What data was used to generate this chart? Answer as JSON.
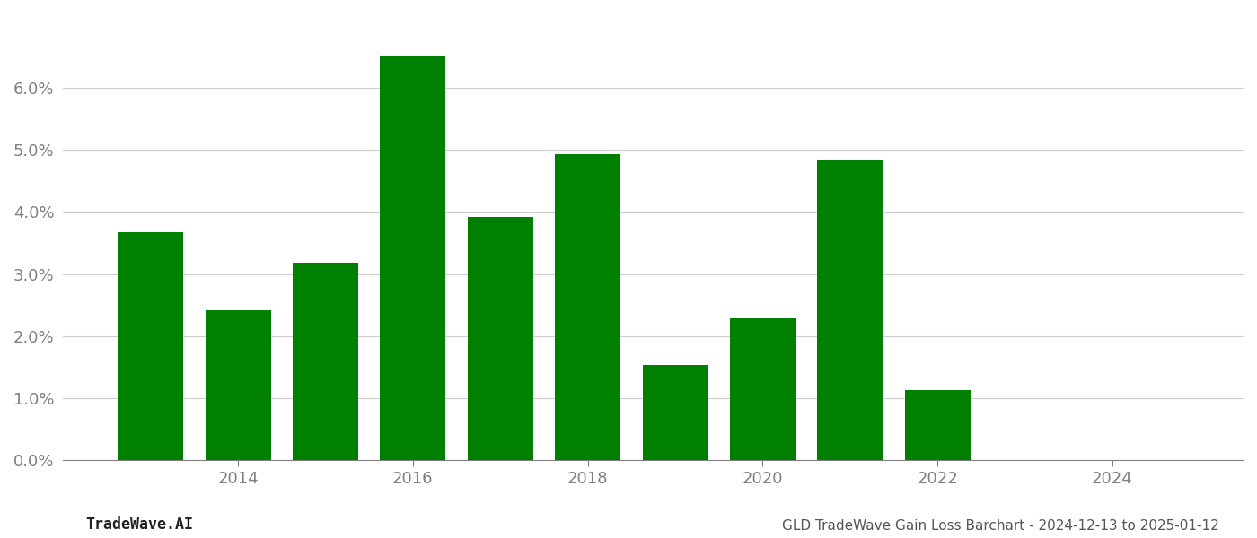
{
  "years": [
    2013,
    2014,
    2015,
    2016,
    2017,
    2018,
    2019,
    2020,
    2021,
    2022,
    2023
  ],
  "values": [
    0.0368,
    0.0242,
    0.0318,
    0.0652,
    0.0392,
    0.0493,
    0.0154,
    0.0228,
    0.0485,
    0.0113,
    0.0
  ],
  "bar_color": "#008000",
  "background_color": "#ffffff",
  "grid_color": "#cccccc",
  "tick_label_color": "#808080",
  "bottom_left_text": "TradeWave.AI",
  "bottom_right_text": "GLD TradeWave Gain Loss Barchart - 2024-12-13 to 2025-01-12",
  "ylim": [
    0.0,
    0.072
  ],
  "yticks": [
    0.0,
    0.01,
    0.02,
    0.03,
    0.04,
    0.05,
    0.06
  ],
  "xtick_labels": [
    "2014",
    "2016",
    "2018",
    "2020",
    "2022",
    "2024"
  ],
  "xtick_positions": [
    2014,
    2016,
    2018,
    2020,
    2022,
    2024
  ],
  "xlim_left": 2012.0,
  "xlim_right": 2025.5,
  "bar_width": 0.75
}
